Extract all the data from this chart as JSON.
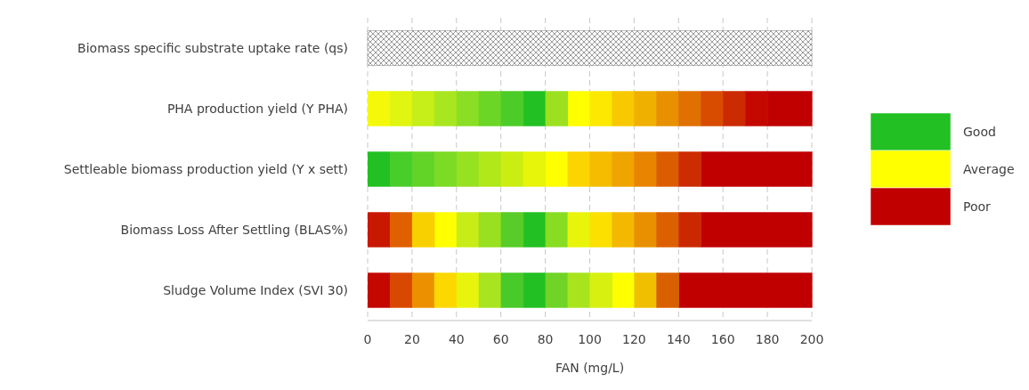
{
  "chart_data": {
    "type": "bar",
    "orientation": "horizontal",
    "xlabel": "FAN (mg/L)",
    "categories": [
      "Biomass specific substrate uptake rate (qs)",
      "PHA production yield (Y PHA)",
      "Settleable biomass production yield (Y x sett)",
      "Biomass Loss After Settling (BLAS%)",
      "Sludge Volume Index (SVI 30)"
    ],
    "xlim": [
      0,
      200
    ],
    "xticks": [
      0,
      20,
      40,
      60,
      80,
      100,
      120,
      140,
      160,
      180,
      200
    ],
    "grid": "x",
    "legend": "right",
    "series": [
      {
        "name": "Good",
        "color": "#22c022",
        "base": [
          null,
          70,
          0,
          70,
          70
        ],
        "values": [
          null,
          10,
          10,
          10,
          10
        ]
      },
      {
        "name": "Average",
        "color": "#ffff00",
        "base": [
          null,
          90,
          80,
          30,
          110
        ],
        "values": [
          null,
          10,
          10,
          10,
          10
        ]
      },
      {
        "name": "Poor",
        "color": "#c00000",
        "base": [
          null,
          180,
          150,
          150,
          140
        ],
        "values": [
          null,
          20,
          50,
          50,
          60
        ]
      },
      {
        "color": "#808080",
        "base": [
          0,
          null,
          null,
          null,
          null
        ],
        "values": [
          200,
          null,
          null,
          null,
          null
        ]
      },
      {
        "base": [
          null,
          0,
          10,
          0,
          0
        ],
        "values": [
          null,
          10,
          10,
          10,
          10
        ],
        "colors": [
          null,
          "#f4f90a",
          "#48ce2a",
          "#c81800",
          "#c40800"
        ]
      },
      {
        "base": [
          null,
          10,
          20,
          10,
          10
        ],
        "values": [
          null,
          10,
          10,
          10,
          10
        ],
        "colors": [
          null,
          "#e0f510",
          "#62d428",
          "#e06000",
          "#d84800"
        ]
      },
      {
        "base": [
          null,
          20,
          30,
          20,
          20
        ],
        "values": [
          null,
          10,
          10,
          10,
          10
        ],
        "colors": [
          null,
          "#c6ee18",
          "#7cdb24",
          "#f8d000",
          "#ec9000"
        ]
      },
      {
        "base": [
          null,
          30,
          40,
          40,
          30
        ],
        "values": [
          null,
          10,
          10,
          10,
          10
        ],
        "colors": [
          null,
          "#a8e620",
          "#96e120",
          "#c8ec18",
          "#fcd800"
        ]
      },
      {
        "base": [
          null,
          40,
          50,
          50,
          40
        ],
        "values": [
          null,
          10,
          10,
          10,
          10
        ],
        "colors": [
          null,
          "#8ade24",
          "#b0e81a",
          "#98e020",
          "#e8f40c"
        ]
      },
      {
        "base": [
          null,
          50,
          60,
          60,
          50
        ],
        "values": [
          null,
          10,
          10,
          10,
          10
        ],
        "colors": [
          null,
          "#6cd626",
          "#cbee12",
          "#58cc28",
          "#a8e420"
        ]
      },
      {
        "base": [
          null,
          60,
          70,
          80,
          60
        ],
        "values": [
          null,
          10,
          10,
          10,
          10
        ],
        "colors": [
          null,
          "#4ccc28",
          "#e6f50a",
          "#88dc22",
          "#48ca2a"
        ]
      },
      {
        "base": [
          null,
          80,
          90,
          90,
          80
        ],
        "values": [
          null,
          10,
          10,
          10,
          10
        ],
        "colors": [
          null,
          "#9ce020",
          "#fcd400",
          "#e8f40a",
          "#70d426"
        ]
      },
      {
        "base": [
          null,
          100,
          100,
          100,
          90
        ],
        "values": [
          null,
          10,
          10,
          10,
          10
        ],
        "colors": [
          null,
          "#fce800",
          "#f6bc00",
          "#fce000",
          "#a8e41c"
        ]
      },
      {
        "base": [
          null,
          110,
          110,
          110,
          100
        ],
        "values": [
          null,
          10,
          10,
          10,
          10
        ],
        "colors": [
          null,
          "#f8c800",
          "#f0a400",
          "#f4b800",
          "#d8f010"
        ]
      },
      {
        "base": [
          null,
          120,
          120,
          120,
          120
        ],
        "values": [
          null,
          10,
          10,
          10,
          10
        ],
        "colors": [
          null,
          "#f0b000",
          "#e88400",
          "#e89000",
          "#f0c000"
        ]
      },
      {
        "base": [
          null,
          130,
          130,
          130,
          130
        ],
        "values": [
          null,
          10,
          10,
          10,
          10
        ],
        "colors": [
          null,
          "#e89000",
          "#dc5c00",
          "#dc6000",
          "#d86000"
        ]
      },
      {
        "base": [
          null,
          140,
          140,
          140,
          null
        ],
        "values": [
          null,
          10,
          10,
          10,
          null
        ],
        "colors": [
          null,
          "#e07000",
          "#cc2c00",
          "#cc2800",
          null
        ]
      },
      {
        "base": [
          null,
          150,
          null,
          null,
          null
        ],
        "values": [
          null,
          10,
          null,
          null,
          null
        ],
        "colors": [
          null,
          "#d84c00",
          null,
          null,
          null
        ]
      },
      {
        "base": [
          null,
          160,
          null,
          null,
          null
        ],
        "values": [
          null,
          10,
          null,
          null,
          null
        ],
        "colors": [
          null,
          "#cc2a00",
          null,
          null,
          null
        ]
      },
      {
        "base": [
          null,
          170,
          null,
          null,
          null
        ],
        "values": [
          null,
          10,
          null,
          null,
          null
        ],
        "colors": [
          null,
          "#c40800",
          null,
          null,
          null
        ]
      }
    ]
  }
}
